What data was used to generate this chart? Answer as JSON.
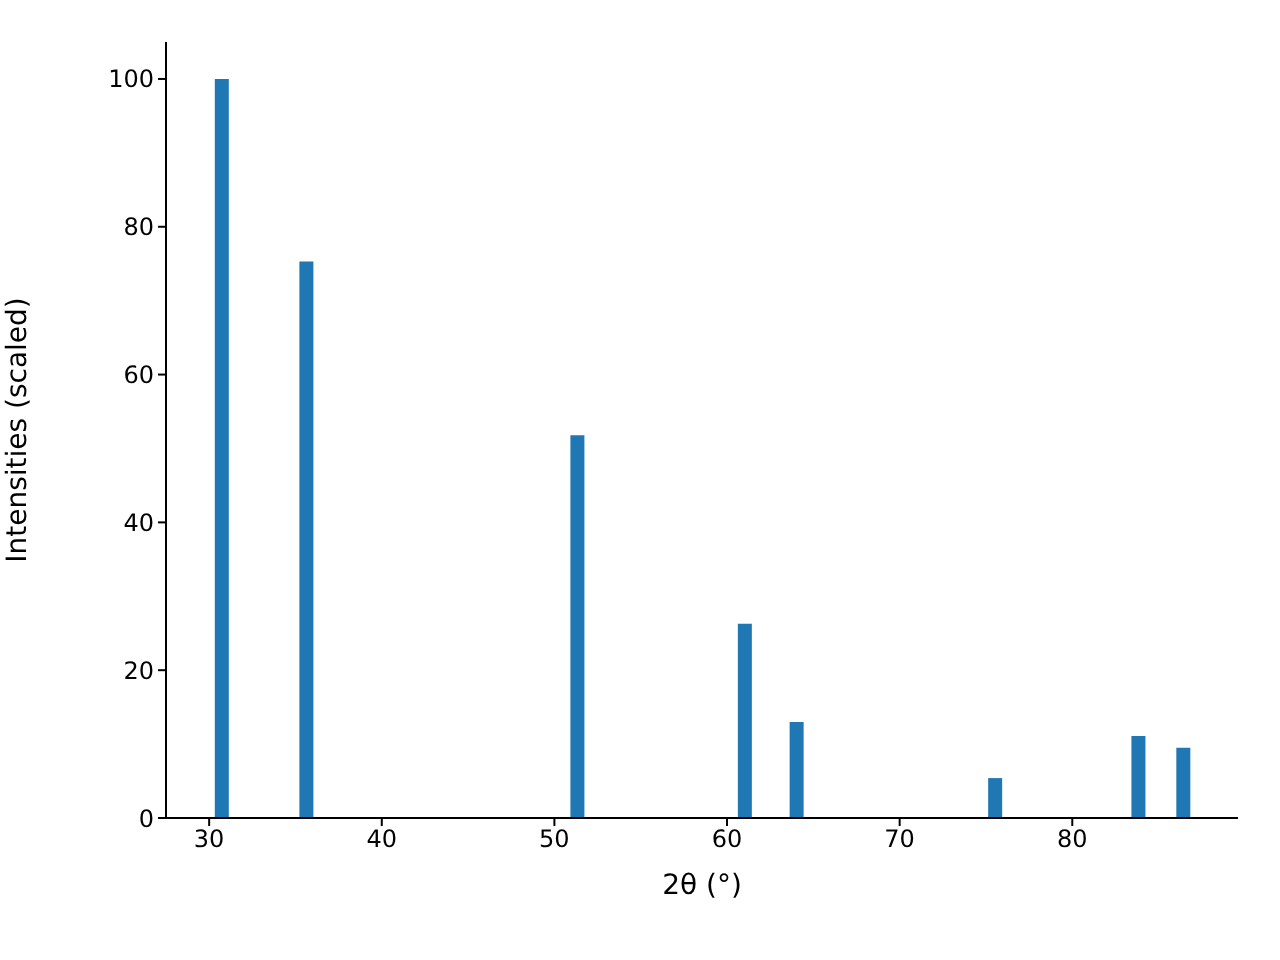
{
  "chart_data": {
    "type": "bar",
    "xlabel": "2θ (°)",
    "ylabel": "Intensities (scaled)",
    "x": [
      30.7,
      35.6,
      51.3,
      61.0,
      64.0,
      75.5,
      83.8,
      86.4
    ],
    "values": [
      100,
      75.3,
      51.8,
      26.3,
      13.0,
      5.4,
      11.1,
      9.5
    ],
    "color": "#1f77b4",
    "xlim": [
      27.5,
      89.6
    ],
    "xticks": [
      30,
      40,
      50,
      60,
      70,
      80
    ],
    "ylim": [
      0,
      105
    ],
    "yticks": [
      0,
      20,
      40,
      60,
      80,
      100
    ]
  }
}
